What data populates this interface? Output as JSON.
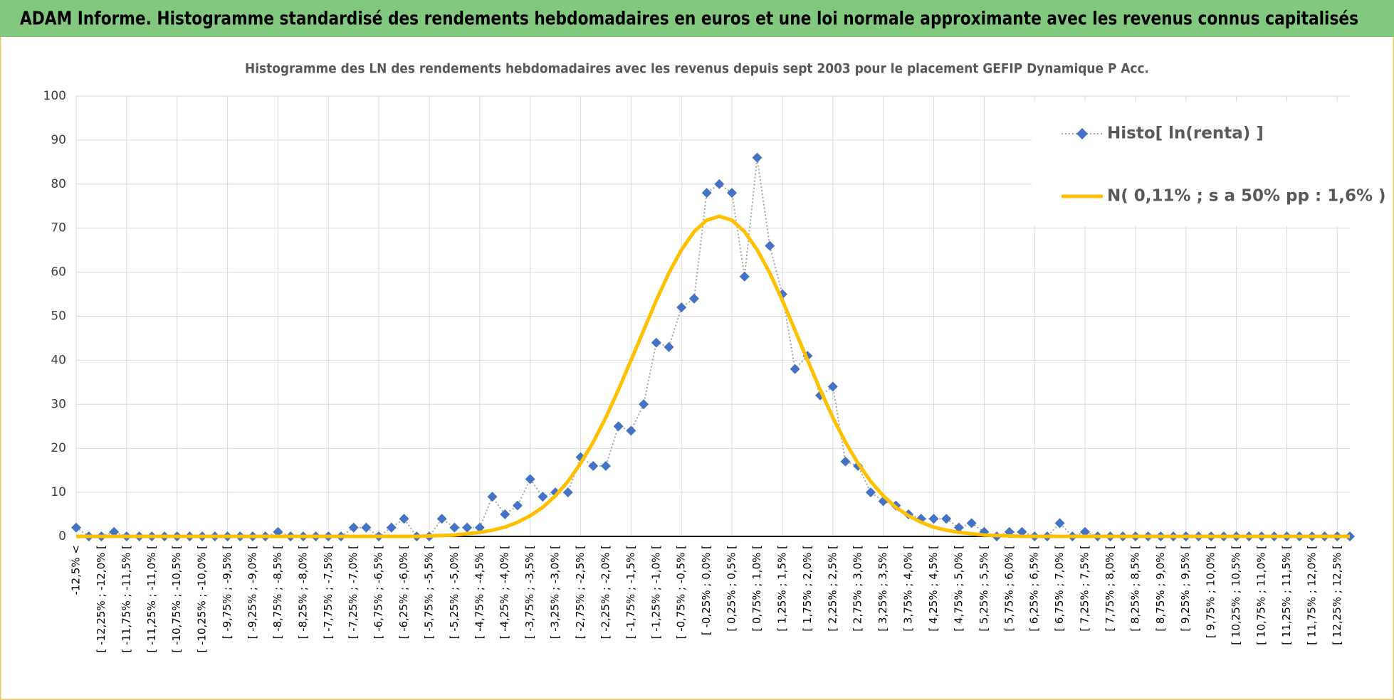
{
  "header": {
    "title": "ADAM Informe. Histogramme standardisé des rendements hebdomadaires en euros et une loi normale approximante avec les revenus connus capitalisés"
  },
  "chart_data": {
    "type": "line",
    "title": "Histogramme des LN des rendements hebdomadaires avec les revenus depuis sept 2003 pour le placement GEFIP Dynamique P Acc.",
    "categories": [
      "-12,5% <",
      null,
      "[ -12,25% ; -12,0% [",
      null,
      "[ -11,75% ; -11,5% [",
      null,
      "[ -11,25% ; -11,0% [",
      null,
      "[ -10,75% ; -10,5% [",
      null,
      "[ -10,25% ; -10,0% [",
      null,
      "[ -9,75% ; -9,5% [",
      null,
      "[ -9,25% ; -9,0% [",
      null,
      "[ -8,75% ; -8,5% [",
      null,
      "[ -8,25% ; -8,0% [",
      null,
      "[ -7,75% ; -7,5% [",
      null,
      "[ -7,25% ; -7,0% [",
      null,
      "[ -6,75% ; -6,5% [",
      null,
      "[ -6,25% ; -6,0% [",
      null,
      "[ -5,75% ; -5,5% [",
      null,
      "[ -5,25% ; -5,0% [",
      null,
      "[ -4,75% ; -4,5% [",
      null,
      "[ -4,25% ; -4,0% [",
      null,
      "[ -3,75% ; -3,5% [",
      null,
      "[ -3,25% ; -3,0% [",
      null,
      "[ -2,75% ; -2,5% [",
      null,
      "[ -2,25% ; -2,0% [",
      null,
      "[ -1,75% ; -1,5% [",
      null,
      "[ -1,25% ; -1,0% [",
      null,
      "[ -0,75% ; -0,5% [",
      null,
      "[ -0,25% ; 0,0% [",
      null,
      "[ 0,25% ; 0,5% [",
      null,
      "[ 0,75% ; 1,0% [",
      null,
      "[ 1,25% ; 1,5% [",
      null,
      "[ 1,75% ; 2,0% [",
      null,
      "[ 2,25% ; 2,5% [",
      null,
      "[ 2,75% ; 3,0% [",
      null,
      "[ 3,25% ; 3,5% [",
      null,
      "[ 3,75% ; 4,0% [",
      null,
      "[ 4,25% ; 4,5% [",
      null,
      "[ 4,75% ; 5,0% [",
      null,
      "[ 5,25% ; 5,5% [",
      null,
      "[ 5,75% ; 6,0% [",
      null,
      "[ 6,25% ; 6,5% [",
      null,
      "[ 6,75% ; 7,0% [",
      null,
      "[ 7,25% ; 7,5% [",
      null,
      "[ 7,75% ; 8,0% [",
      null,
      "[ 8,25% ; 8,5% [",
      null,
      "[ 8,75% ; 9,0% [",
      null,
      "[ 9,25% ; 9,5% [",
      null,
      "[ 9,75% ; 10,0% [",
      null,
      "[ 10,25% ; 10,5% [",
      null,
      "[ 10,75% ; 11,0% [",
      null,
      "[ 11,25% ; 11,5% [",
      null,
      "[ 11,75% ; 12,0% [",
      null,
      "[ 12,25% ; 12,5% [",
      null
    ],
    "series": [
      {
        "name": "Histo[ ln(renta) ]",
        "color": "#4472c4",
        "style": "dotted-markers",
        "values": [
          2,
          0,
          0,
          1,
          0,
          0,
          0,
          0,
          0,
          0,
          0,
          0,
          0,
          0,
          0,
          0,
          1,
          0,
          0,
          0,
          0,
          0,
          2,
          2,
          0,
          2,
          4,
          0,
          0,
          4,
          2,
          2,
          2,
          9,
          5,
          7,
          13,
          9,
          10,
          10,
          18,
          16,
          16,
          25,
          24,
          30,
          44,
          43,
          52,
          54,
          78,
          80,
          78,
          59,
          86,
          66,
          55,
          38,
          41,
          32,
          34,
          17,
          16,
          10,
          8,
          7,
          5,
          4,
          4,
          4,
          2,
          3,
          1,
          0,
          1,
          1,
          0,
          0,
          3,
          0,
          1,
          0,
          0,
          0,
          0,
          0,
          0,
          0,
          0,
          0,
          0,
          0,
          0,
          0,
          0,
          0,
          0,
          0,
          0,
          0,
          0,
          0
        ]
      },
      {
        "name": "N( 0,11% ; s a 50% pp : 1,6% )",
        "color": "#ffc000",
        "style": "thick-line",
        "values": [
          0,
          0,
          0,
          0,
          0,
          0,
          0,
          0,
          0,
          0,
          0,
          0,
          0,
          0,
          0,
          0,
          0,
          0,
          0,
          0,
          0,
          0,
          0,
          0,
          0,
          0,
          0,
          0,
          0.1,
          0.2,
          0.3,
          0.6,
          0.9,
          1.4,
          2.1,
          3.2,
          4.7,
          6.6,
          9.2,
          12.5,
          16.6,
          21.4,
          27.0,
          33.3,
          40.0,
          46.8,
          53.6,
          59.8,
          65.1,
          69.2,
          71.8,
          72.7,
          71.8,
          69.2,
          65.1,
          59.8,
          53.6,
          46.8,
          40.0,
          33.3,
          27.0,
          21.4,
          16.6,
          12.5,
          9.2,
          6.6,
          4.7,
          3.2,
          2.1,
          1.4,
          0.9,
          0.6,
          0.3,
          0.2,
          0.1,
          0,
          0,
          0,
          0,
          0,
          0,
          0,
          0,
          0,
          0,
          0,
          0,
          0,
          0,
          0,
          0,
          0,
          0,
          0,
          0,
          0,
          0,
          0,
          0,
          0,
          0,
          0
        ]
      }
    ],
    "ylim": [
      0,
      100
    ],
    "yticks": [
      0,
      10,
      20,
      30,
      40,
      50,
      60,
      70,
      80,
      90,
      100
    ],
    "grid": true,
    "legend": "top-right"
  }
}
